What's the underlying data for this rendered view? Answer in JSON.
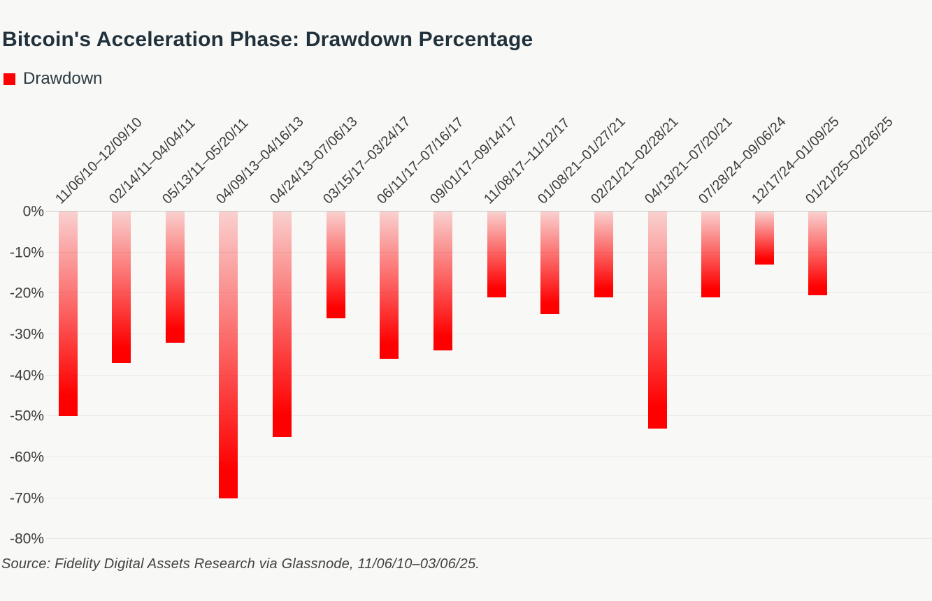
{
  "title": "Bitcoin's Acceleration Phase: Drawdown Percentage",
  "legend": {
    "label": "Drawdown",
    "swatch_color": "#fe0000"
  },
  "source_note": "Source: Fidelity Digital Assets Research via Glassnode, 11/06/10–03/06/25.",
  "colors": {
    "background": "#f8f8f6",
    "title_text": "#21313b",
    "axis_text": "#3b3b3b",
    "gridline": "#e9e9e7",
    "zero_line": "#c6c9c6",
    "bar_top": "rgba(254,0,0,0.16)",
    "bar_bottom": "#fe0000"
  },
  "chart_data": {
    "type": "bar",
    "title": "Bitcoin's Acceleration Phase: Drawdown Percentage",
    "series_name": "Drawdown",
    "unit": "%",
    "categories": [
      "11/06/10–12/09/10",
      "02/14/11–04/04/11",
      "05/13/11–05/20/11",
      "04/09/13–04/16/13",
      "04/24/13–07/06/13",
      "03/15/17–03/24/17",
      "06/11/17–07/16/17",
      "09/01/17–09/14/17",
      "11/08/17–11/12/17",
      "01/08/21–01/27/21",
      "02/21/21–02/28/21",
      "04/13/21–07/20/21",
      "07/28/24–09/06/24",
      "12/17/24–01/09/25",
      "01/21/25–02/26/25"
    ],
    "values": [
      -50,
      -37,
      -32,
      -70,
      -55,
      -26,
      -36,
      -34,
      -21,
      -25,
      -21,
      -53,
      -21,
      -13,
      -20.5
    ],
    "xlabel": "",
    "ylabel": "",
    "ylim": [
      -80,
      0
    ],
    "yticks": [
      0,
      -10,
      -20,
      -30,
      -40,
      -50,
      -60,
      -70,
      -80
    ],
    "ytick_labels": [
      "0%",
      "-10%",
      "-20%",
      "-30%",
      "-40%",
      "-50%",
      "-60%",
      "-70%",
      "-80%"
    ],
    "grid": true,
    "legend_position": "top-left",
    "x_labels_rotation_deg": 45,
    "bar_gradient": [
      "rgba(254,0,0,0.16)",
      "#fe0000"
    ]
  }
}
